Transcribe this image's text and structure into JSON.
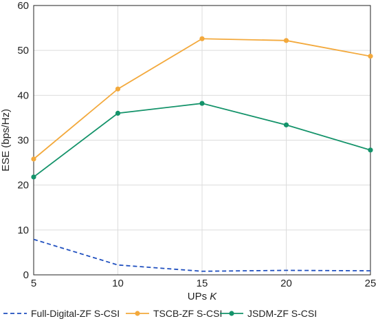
{
  "chart_data": {
    "type": "line",
    "xlabel": "UPs",
    "xlabel_symbol": "K",
    "ylabel": "ESE (bps/Hz)",
    "x": [
      5,
      10,
      15,
      20,
      25
    ],
    "xlim": [
      5,
      25
    ],
    "ylim": [
      0,
      60
    ],
    "xticks": [
      "5",
      "10",
      "15",
      "20",
      "25"
    ],
    "yticks": [
      "0",
      "10",
      "20",
      "30",
      "40",
      "50",
      "60"
    ],
    "grid": true,
    "legend_position": "bottom",
    "series": [
      {
        "name": "Full-Digital-ZF S-CSI",
        "values": [
          7.9,
          2.2,
          0.8,
          1.0,
          0.9
        ],
        "color": "#1f4fbf",
        "style": "dashed",
        "marker": "none"
      },
      {
        "name": "TSCB-ZF S-CSI",
        "values": [
          25.8,
          41.4,
          52.6,
          52.2,
          48.7
        ],
        "color": "#f3a93c",
        "style": "solid",
        "marker": "circle"
      },
      {
        "name": "JSDM-ZF S-CSI",
        "values": [
          21.8,
          36.0,
          38.2,
          33.4,
          27.8
        ],
        "color": "#14936a",
        "style": "solid",
        "marker": "circle"
      }
    ]
  }
}
